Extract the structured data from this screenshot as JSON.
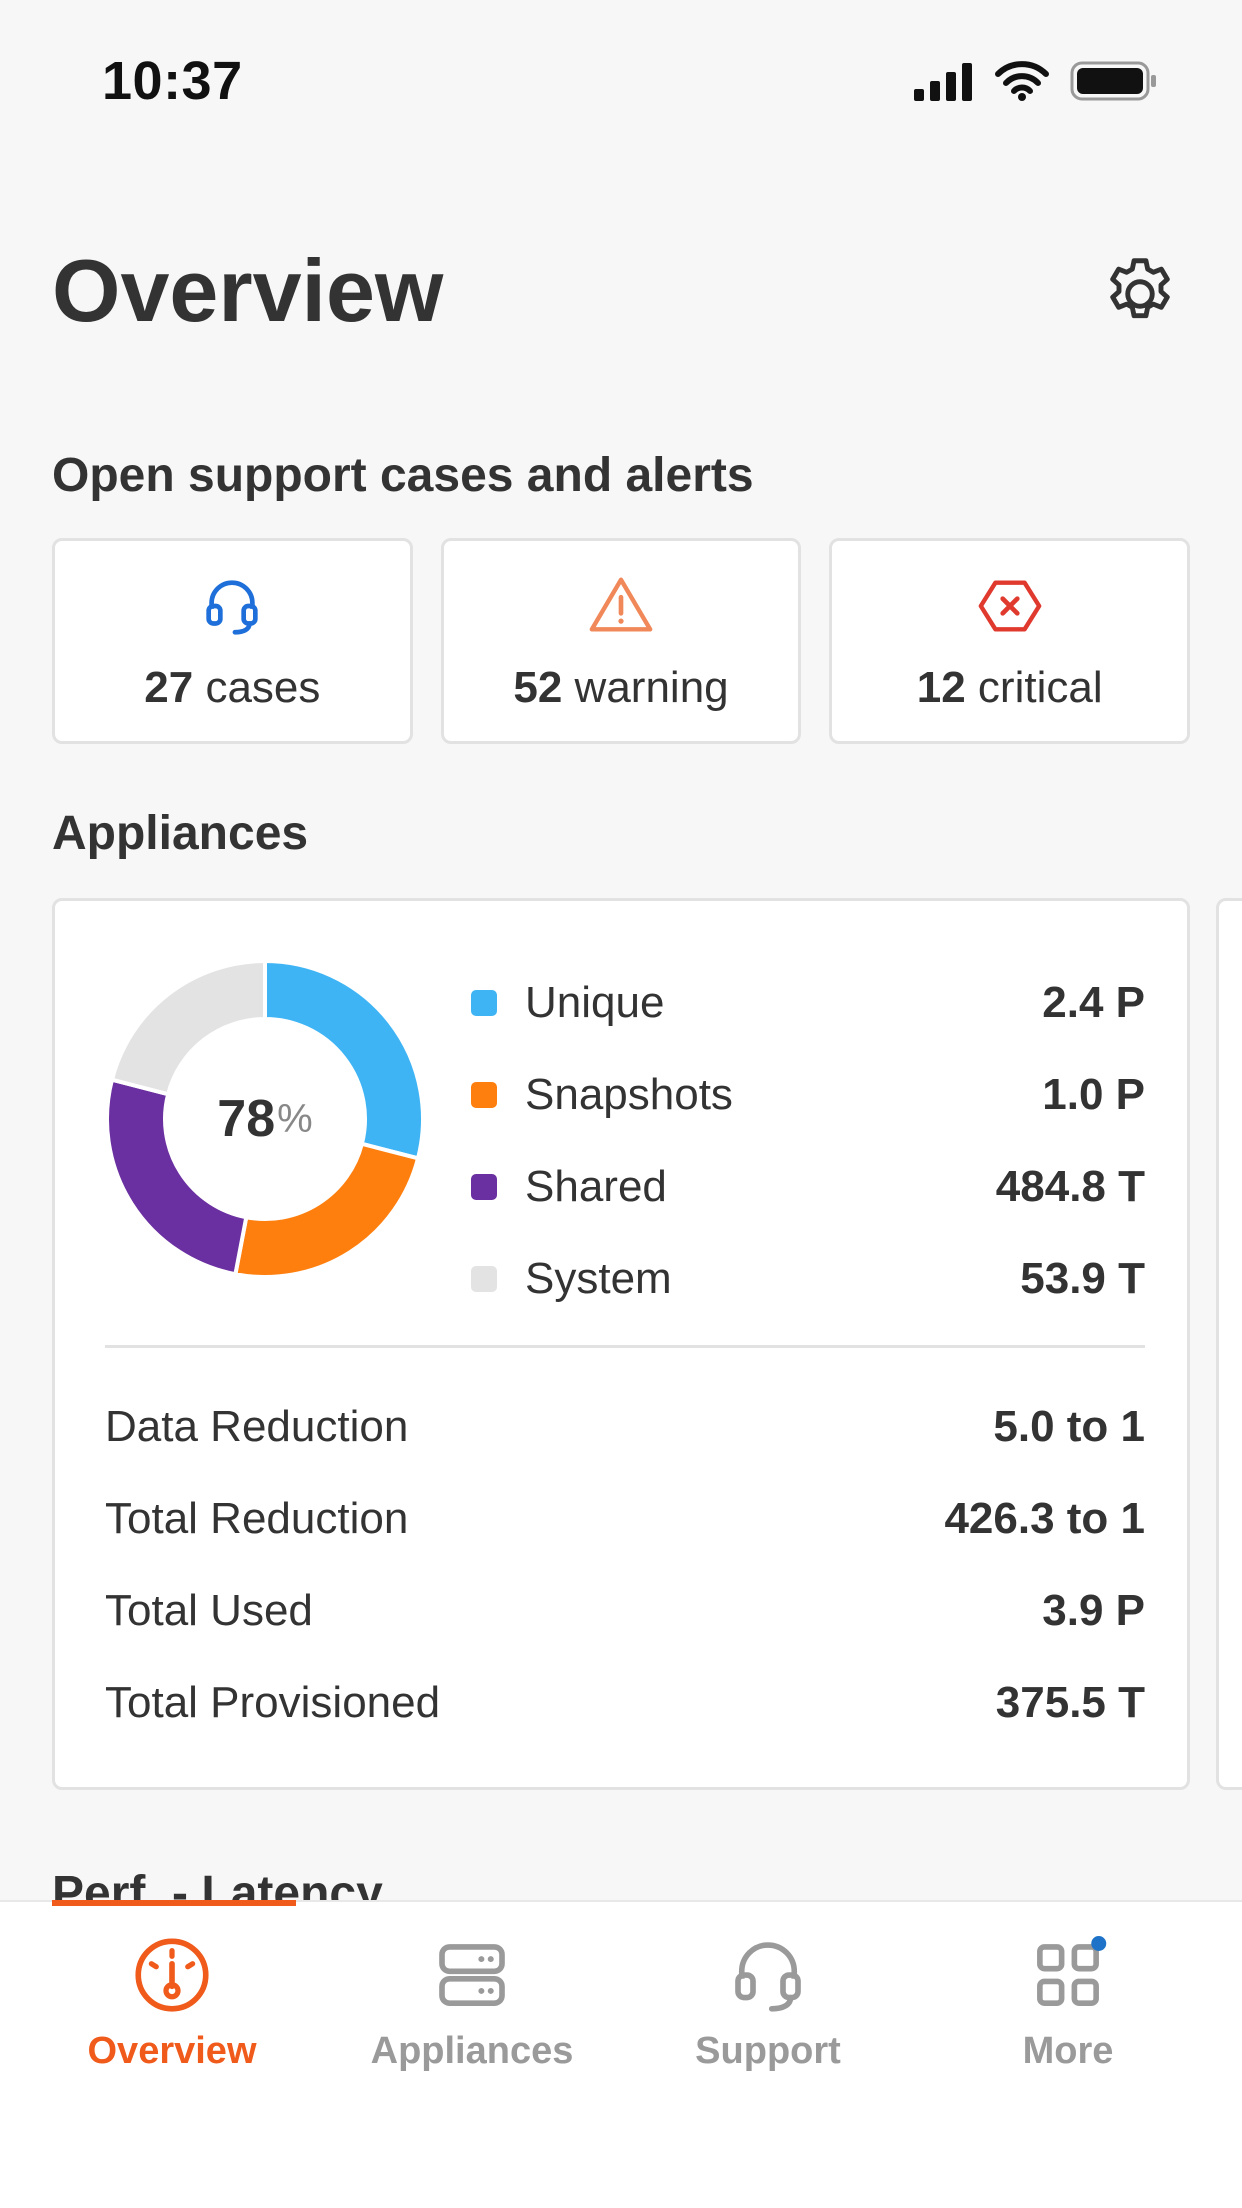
{
  "status_bar": {
    "time": "10:37"
  },
  "header": {
    "title": "Overview"
  },
  "alerts": {
    "section_title": "Open support cases and alerts",
    "cards": [
      {
        "count": "27",
        "label": "cases",
        "icon": "headset-icon",
        "color": "#1e6fd9"
      },
      {
        "count": "52",
        "label": "warning",
        "icon": "warning-triangle-icon",
        "color": "#f0885a"
      },
      {
        "count": "12",
        "label": "critical",
        "icon": "critical-octagon-icon",
        "color": "#e03a2f"
      }
    ]
  },
  "appliances": {
    "section_title": "Appliances",
    "donut_value": "78",
    "donut_unit": "%",
    "legend": [
      {
        "label": "Unique",
        "value": "2.4 P",
        "color": "#3fb4f5"
      },
      {
        "label": "Snapshots",
        "value": "1.0 P",
        "color": "#ff7f0e"
      },
      {
        "label": "Shared",
        "value": "484.8 T",
        "color": "#6a2fa0"
      },
      {
        "label": "System",
        "value": "53.9 T",
        "color": "#e3e3e3"
      }
    ],
    "stats": [
      {
        "label": "Data Reduction",
        "value": "5.0 to 1"
      },
      {
        "label": "Total Reduction",
        "value": "426.3 to 1"
      },
      {
        "label": "Total Used",
        "value": "3.9 P"
      },
      {
        "label": "Total Provisioned",
        "value": "375.5 T"
      }
    ]
  },
  "chart_data": {
    "type": "pie",
    "categories": [
      "Unique",
      "Snapshots",
      "Shared",
      "System"
    ],
    "values": [
      29,
      24,
      26,
      21
    ]
  },
  "next_section_title": "Perf. - Latency",
  "nav": {
    "items": [
      {
        "label": "Overview",
        "icon": "gauge-icon",
        "active": true
      },
      {
        "label": "Appliances",
        "icon": "server-icon",
        "active": false
      },
      {
        "label": "Support",
        "icon": "headset-icon",
        "active": false
      },
      {
        "label": "More",
        "icon": "grid-icon",
        "active": false,
        "badge": true
      }
    ],
    "active_color": "#f05a1a",
    "inactive_color": "#9a9a9a",
    "badge_color": "#1e73c8"
  }
}
